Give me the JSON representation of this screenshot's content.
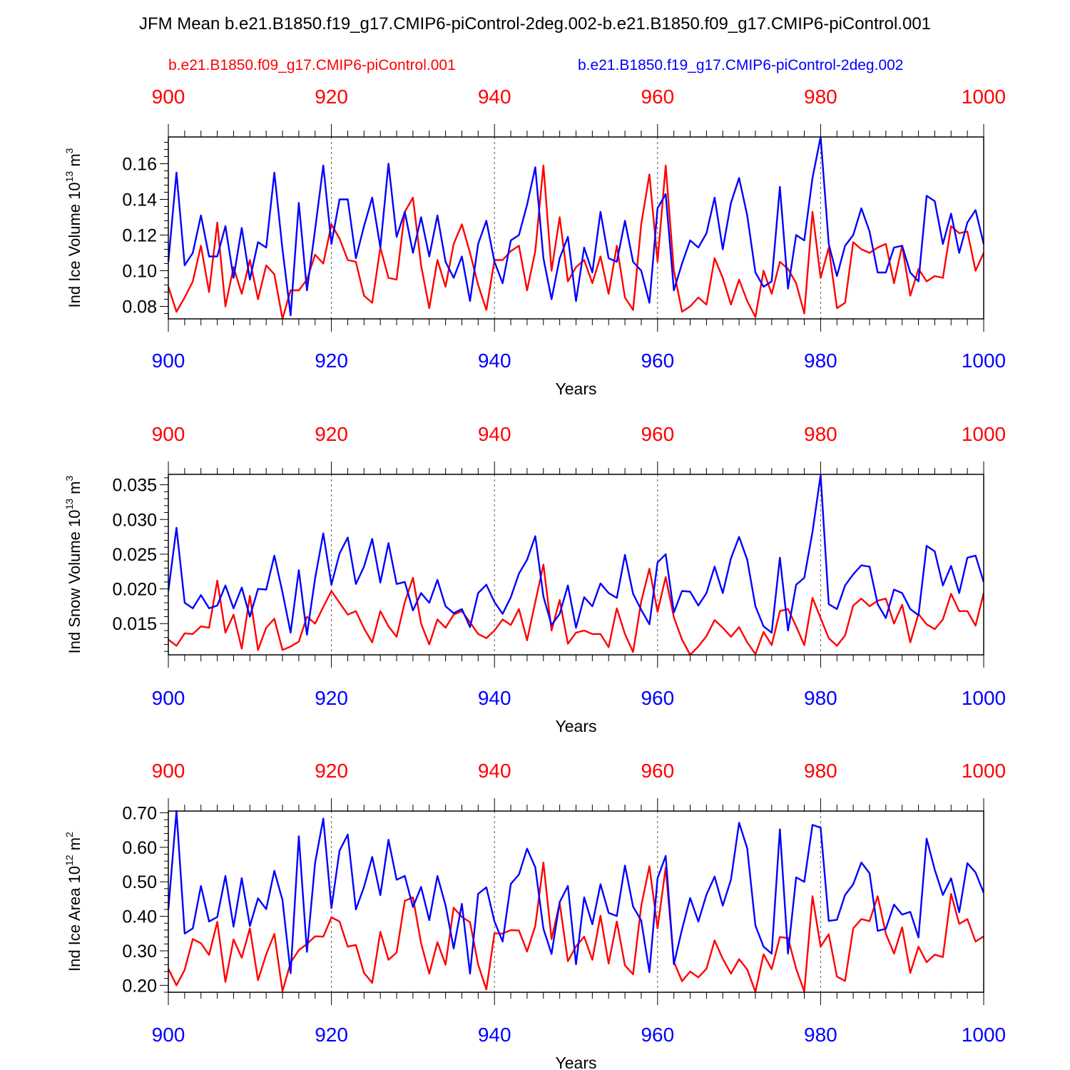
{
  "title": "JFM Mean b.e21.B1850.f19_g17.CMIP6-piControl-2deg.002-b.e21.B1850.f09_g17.CMIP6-piControl.001",
  "legend": {
    "red_label": "b.e21.B1850.f09_g17.CMIP6-piControl.001",
    "blue_label": "b.e21.B1850.f19_g17.CMIP6-piControl-2deg.002",
    "red_color": "#ff0000",
    "blue_color": "#0000ff"
  },
  "chart_data": [
    {
      "type": "line",
      "ylabel": "Ind Ice Volume 10^13 m^3",
      "ylabel_main": "Ind Ice Volume 10",
      "ylabel_exp1": "13",
      "ylabel_unit": " m",
      "ylabel_exp2": "3",
      "xlabel": "Years",
      "xlim": [
        900,
        1000
      ],
      "ylim": [
        0.073,
        0.175
      ],
      "xticks": [
        "900",
        "920",
        "940",
        "960",
        "980",
        "1000"
      ],
      "yticks": [
        "0.08",
        "0.10",
        "0.12",
        "0.14",
        "0.16"
      ],
      "series": [
        {
          "name": "b.e21.B1850.f09_g17.CMIP6-piControl.001",
          "color": "#ff0000",
          "x_start": 900,
          "values": [
            0.091,
            0.077,
            0.085,
            0.094,
            0.114,
            0.088,
            0.127,
            0.08,
            0.102,
            0.087,
            0.106,
            0.084,
            0.103,
            0.098,
            0.073,
            0.089,
            0.089,
            0.095,
            0.109,
            0.104,
            0.126,
            0.118,
            0.106,
            0.105,
            0.086,
            0.082,
            0.113,
            0.096,
            0.095,
            0.133,
            0.141,
            0.103,
            0.079,
            0.106,
            0.091,
            0.115,
            0.126,
            0.11,
            0.092,
            0.078,
            0.106,
            0.106,
            0.111,
            0.114,
            0.089,
            0.111,
            0.159,
            0.1,
            0.13,
            0.094,
            0.102,
            0.106,
            0.093,
            0.108,
            0.087,
            0.114,
            0.085,
            0.078,
            0.126,
            0.154,
            0.105,
            0.159,
            0.1,
            0.077,
            0.08,
            0.085,
            0.081,
            0.107,
            0.096,
            0.081,
            0.095,
            0.083,
            0.074,
            0.1,
            0.087,
            0.105,
            0.101,
            0.093,
            0.076,
            0.133,
            0.096,
            0.113,
            0.079,
            0.082,
            0.116,
            0.112,
            0.11,
            0.113,
            0.115,
            0.093,
            0.114,
            0.086,
            0.101,
            0.094,
            0.097,
            0.096,
            0.125,
            0.121,
            0.122,
            0.1,
            0.11
          ]
        },
        {
          "name": "b.e21.B1850.f19_g17.CMIP6-piControl-2deg.002",
          "color": "#0000ff",
          "x_start": 900,
          "values": [
            0.105,
            0.155,
            0.103,
            0.11,
            0.131,
            0.108,
            0.108,
            0.125,
            0.096,
            0.124,
            0.095,
            0.116,
            0.113,
            0.155,
            0.112,
            0.075,
            0.138,
            0.089,
            0.123,
            0.159,
            0.115,
            0.14,
            0.14,
            0.107,
            0.125,
            0.141,
            0.113,
            0.16,
            0.119,
            0.133,
            0.11,
            0.13,
            0.108,
            0.131,
            0.105,
            0.096,
            0.108,
            0.083,
            0.115,
            0.128,
            0.105,
            0.093,
            0.117,
            0.12,
            0.137,
            0.158,
            0.107,
            0.084,
            0.107,
            0.119,
            0.083,
            0.113,
            0.099,
            0.133,
            0.107,
            0.105,
            0.128,
            0.105,
            0.1,
            0.082,
            0.135,
            0.143,
            0.089,
            0.104,
            0.117,
            0.113,
            0.121,
            0.141,
            0.112,
            0.138,
            0.152,
            0.131,
            0.099,
            0.091,
            0.094,
            0.147,
            0.09,
            0.12,
            0.117,
            0.152,
            0.175,
            0.115,
            0.097,
            0.114,
            0.12,
            0.135,
            0.122,
            0.099,
            0.099,
            0.113,
            0.114,
            0.099,
            0.094,
            0.142,
            0.139,
            0.115,
            0.132,
            0.11,
            0.127,
            0.134,
            0.115
          ]
        }
      ]
    },
    {
      "type": "line",
      "ylabel": "Ind Snow Volume 10^13 m^3",
      "ylabel_main": "Ind Snow Volume 10",
      "ylabel_exp1": "13",
      "ylabel_unit": " m",
      "ylabel_exp2": "3",
      "xlabel": "Years",
      "xlim": [
        900,
        1000
      ],
      "ylim": [
        0.0105,
        0.0365
      ],
      "xticks": [
        "900",
        "920",
        "940",
        "960",
        "980",
        "1000"
      ],
      "yticks": [
        "0.015",
        "0.020",
        "0.025",
        "0.030",
        "0.035"
      ],
      "series": [
        {
          "name": "b.e21.B1850.f09_g17.CMIP6-piControl.001",
          "color": "#ff0000",
          "x_start": 900,
          "values": [
            0.0127,
            0.0118,
            0.0136,
            0.0135,
            0.0146,
            0.0144,
            0.0212,
            0.0137,
            0.0163,
            0.0114,
            0.019,
            0.0112,
            0.0144,
            0.0157,
            0.0112,
            0.0117,
            0.0124,
            0.016,
            0.015,
            0.0174,
            0.0197,
            0.018,
            0.0163,
            0.0168,
            0.0143,
            0.0123,
            0.0168,
            0.0146,
            0.0131,
            0.0181,
            0.0216,
            0.015,
            0.012,
            0.0156,
            0.0144,
            0.0163,
            0.0168,
            0.0152,
            0.0135,
            0.0129,
            0.014,
            0.0156,
            0.0148,
            0.0171,
            0.0126,
            0.0181,
            0.0235,
            0.014,
            0.0184,
            0.0121,
            0.0137,
            0.014,
            0.0135,
            0.0135,
            0.0116,
            0.0172,
            0.0135,
            0.0109,
            0.0182,
            0.0229,
            0.0167,
            0.0217,
            0.0159,
            0.0127,
            0.0105,
            0.0117,
            0.0132,
            0.0155,
            0.0144,
            0.0131,
            0.0145,
            0.0123,
            0.0106,
            0.0138,
            0.0119,
            0.0168,
            0.0171,
            0.0146,
            0.0119,
            0.0187,
            0.0158,
            0.0129,
            0.0118,
            0.0133,
            0.0176,
            0.0186,
            0.0175,
            0.0183,
            0.0186,
            0.015,
            0.0177,
            0.0123,
            0.0164,
            0.0149,
            0.0142,
            0.0156,
            0.0193,
            0.0168,
            0.0168,
            0.0147,
            0.0194
          ]
        },
        {
          "name": "b.e21.B1850.f19_g17.CMIP6-piControl-2deg.002",
          "color": "#0000ff",
          "x_start": 900,
          "values": [
            0.0197,
            0.0288,
            0.018,
            0.0172,
            0.0191,
            0.0172,
            0.0176,
            0.0205,
            0.0172,
            0.0202,
            0.016,
            0.02,
            0.0199,
            0.0248,
            0.0195,
            0.0137,
            0.0227,
            0.0134,
            0.0215,
            0.028,
            0.0206,
            0.0251,
            0.0274,
            0.0207,
            0.0232,
            0.0272,
            0.0209,
            0.0266,
            0.0207,
            0.021,
            0.0169,
            0.0194,
            0.018,
            0.0213,
            0.0175,
            0.0165,
            0.0171,
            0.0145,
            0.0194,
            0.0206,
            0.0181,
            0.0164,
            0.0188,
            0.0222,
            0.0242,
            0.0276,
            0.0189,
            0.0148,
            0.0164,
            0.0205,
            0.0144,
            0.0188,
            0.0175,
            0.0208,
            0.0194,
            0.0187,
            0.0249,
            0.0193,
            0.017,
            0.0149,
            0.0238,
            0.025,
            0.0166,
            0.0197,
            0.0196,
            0.0176,
            0.0194,
            0.0232,
            0.0194,
            0.0244,
            0.0275,
            0.0242,
            0.0175,
            0.0146,
            0.0137,
            0.0245,
            0.014,
            0.0206,
            0.0216,
            0.0282,
            0.0364,
            0.0178,
            0.0171,
            0.0205,
            0.0221,
            0.0234,
            0.0232,
            0.0178,
            0.0158,
            0.0199,
            0.0194,
            0.0171,
            0.0162,
            0.0262,
            0.0254,
            0.0205,
            0.0233,
            0.0194,
            0.0245,
            0.0248,
            0.021
          ]
        }
      ]
    },
    {
      "type": "line",
      "ylabel": "Ind Ice Area 10^12 m^2",
      "ylabel_main": "Ind Ice Area 10",
      "ylabel_exp1": "12",
      "ylabel_unit": " m",
      "ylabel_exp2": "2",
      "xlabel": "Years",
      "xlim": [
        900,
        1000
      ],
      "ylim": [
        0.18,
        0.705
      ],
      "xticks": [
        "900",
        "920",
        "940",
        "960",
        "980",
        "1000"
      ],
      "yticks": [
        "0.20",
        "0.30",
        "0.40",
        "0.50",
        "0.60",
        "0.70"
      ],
      "series": [
        {
          "name": "b.e21.B1850.f09_g17.CMIP6-piControl.001",
          "color": "#ff0000",
          "x_start": 900,
          "values": [
            0.248,
            0.2,
            0.245,
            0.334,
            0.322,
            0.288,
            0.384,
            0.21,
            0.333,
            0.28,
            0.365,
            0.215,
            0.29,
            0.349,
            0.183,
            0.266,
            0.302,
            0.32,
            0.342,
            0.341,
            0.397,
            0.385,
            0.312,
            0.317,
            0.236,
            0.207,
            0.355,
            0.274,
            0.295,
            0.445,
            0.455,
            0.322,
            0.234,
            0.325,
            0.26,
            0.425,
            0.398,
            0.383,
            0.26,
            0.188,
            0.351,
            0.35,
            0.36,
            0.359,
            0.298,
            0.372,
            0.556,
            0.334,
            0.438,
            0.27,
            0.313,
            0.341,
            0.274,
            0.402,
            0.263,
            0.385,
            0.258,
            0.232,
            0.43,
            0.545,
            0.365,
            0.541,
            0.268,
            0.212,
            0.24,
            0.223,
            0.248,
            0.33,
            0.277,
            0.234,
            0.276,
            0.246,
            0.181,
            0.29,
            0.247,
            0.34,
            0.337,
            0.248,
            0.182,
            0.458,
            0.312,
            0.348,
            0.225,
            0.213,
            0.365,
            0.392,
            0.386,
            0.458,
            0.35,
            0.292,
            0.368,
            0.236,
            0.312,
            0.267,
            0.289,
            0.282,
            0.465,
            0.378,
            0.392,
            0.327,
            0.342
          ]
        },
        {
          "name": "b.e21.B1850.f19_g17.CMIP6-piControl-2deg.002",
          "color": "#0000ff",
          "x_start": 900,
          "values": [
            0.42,
            0.705,
            0.35,
            0.365,
            0.488,
            0.385,
            0.398,
            0.517,
            0.37,
            0.511,
            0.372,
            0.452,
            0.421,
            0.532,
            0.447,
            0.235,
            0.632,
            0.297,
            0.555,
            0.683,
            0.424,
            0.59,
            0.637,
            0.42,
            0.485,
            0.572,
            0.461,
            0.622,
            0.506,
            0.517,
            0.427,
            0.485,
            0.389,
            0.517,
            0.432,
            0.307,
            0.436,
            0.234,
            0.465,
            0.484,
            0.385,
            0.327,
            0.494,
            0.521,
            0.596,
            0.542,
            0.364,
            0.291,
            0.441,
            0.488,
            0.261,
            0.455,
            0.377,
            0.493,
            0.41,
            0.401,
            0.547,
            0.428,
            0.388,
            0.238,
            0.51,
            0.575,
            0.261,
            0.362,
            0.453,
            0.385,
            0.463,
            0.515,
            0.431,
            0.506,
            0.671,
            0.597,
            0.373,
            0.312,
            0.292,
            0.652,
            0.292,
            0.513,
            0.5,
            0.665,
            0.657,
            0.387,
            0.39,
            0.462,
            0.493,
            0.556,
            0.525,
            0.358,
            0.364,
            0.434,
            0.405,
            0.413,
            0.339,
            0.625,
            0.535,
            0.462,
            0.51,
            0.412,
            0.554,
            0.527,
            0.468
          ]
        }
      ]
    }
  ]
}
